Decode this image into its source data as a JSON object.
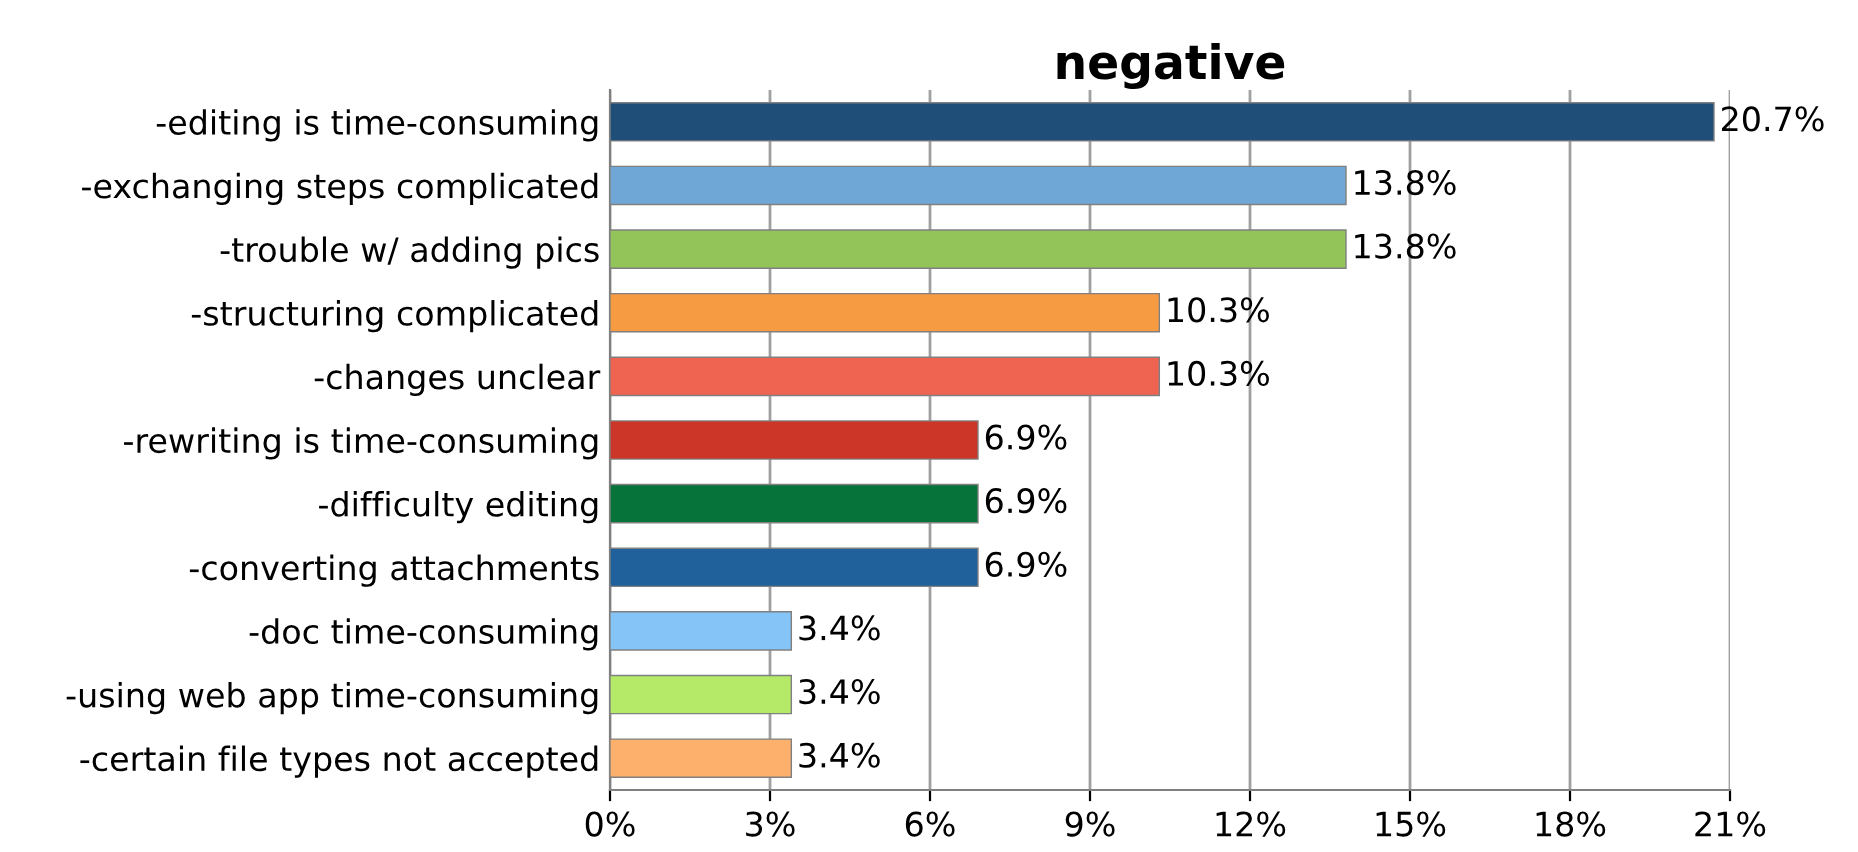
{
  "chart_data": {
    "type": "bar",
    "orientation": "horizontal",
    "title": "negative",
    "categories": [
      "-editing is time-consuming",
      "-exchanging steps complicated",
      "-trouble w/ adding pics",
      "-structuring complicated",
      "-changes unclear",
      "-rewriting is time-consuming",
      "-difficulty editing",
      "-converting attachments",
      "-doc time-consuming",
      "-using web app time-consuming",
      "-certain file types not accepted"
    ],
    "values": [
      20.7,
      13.8,
      13.8,
      10.3,
      10.3,
      6.9,
      6.9,
      6.9,
      3.4,
      3.4,
      3.4
    ],
    "colors": [
      "#1f4e79",
      "#6fa8d6",
      "#92c45a",
      "#f79b42",
      "#ef6351",
      "#cc3628",
      "#05733a",
      "#21619b",
      "#84c4f7",
      "#b5ea68",
      "#fdb06c"
    ],
    "value_labels": [
      "20.7%",
      "13.8%",
      "13.8%",
      "10.3%",
      "10.3%",
      "6.9%",
      "6.9%",
      "6.9%",
      "3.4%",
      "3.4%",
      "3.4%"
    ],
    "xlim": [
      0,
      21
    ],
    "xticks": [
      {
        "value": 0,
        "label": "0%"
      },
      {
        "value": 3,
        "label": "3%"
      },
      {
        "value": 6,
        "label": "6%"
      },
      {
        "value": 9,
        "label": "9%"
      },
      {
        "value": 12,
        "label": "12%"
      },
      {
        "value": 15,
        "label": "15%"
      },
      {
        "value": 18,
        "label": "18%"
      },
      {
        "value": 21,
        "label": "21%"
      }
    ],
    "grid": "x",
    "legend": false
  }
}
